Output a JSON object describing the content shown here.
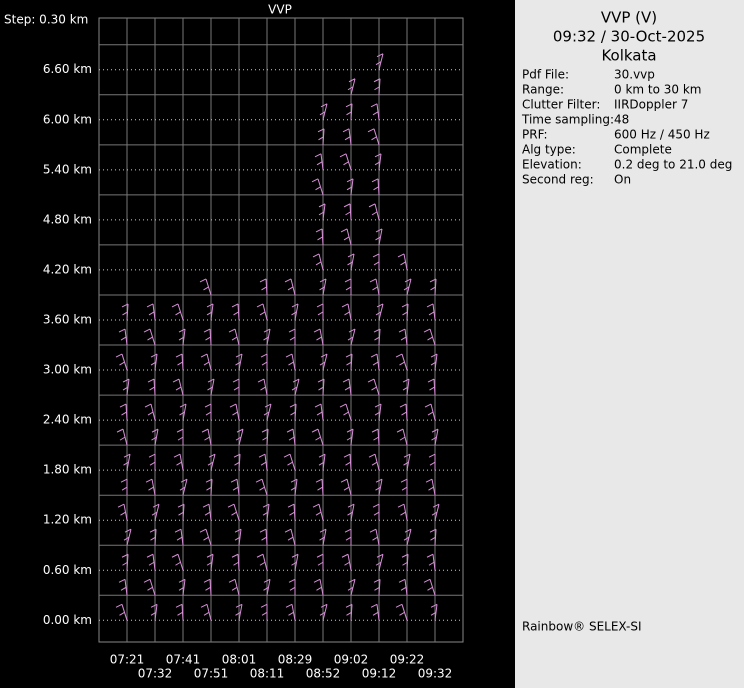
{
  "chart_data": {
    "type": "vvp",
    "title": "VVP",
    "step_label": "Step: 0.30 km",
    "categories": [
      "07:21",
      "07:32",
      "07:41",
      "07:51",
      "08:01",
      "08:11",
      "08:29",
      "08:52",
      "09:02",
      "09:12",
      "09:22",
      "09:32"
    ],
    "values": [
      3.6,
      3.6,
      3.6,
      3.9,
      3.6,
      3.9,
      3.9,
      6.0,
      6.3,
      6.6,
      4.2,
      3.9
    ],
    "step": 0.3,
    "color": "#d88ed8",
    "ylim": [
      -0.26,
      7.22
    ],
    "yticks": [
      {
        "value": 0,
        "label": "0.00 km"
      },
      {
        "value": 0.6,
        "label": "0.60 km"
      },
      {
        "value": 1.2,
        "label": "1.20 km"
      },
      {
        "value": 1.8,
        "label": "1.80 km"
      },
      {
        "value": 2.4,
        "label": "2.40 km"
      },
      {
        "value": 3.0,
        "label": "3.00 km"
      },
      {
        "value": 3.6,
        "label": "3.60 km"
      },
      {
        "value": 4.2,
        "label": "4.20 km"
      },
      {
        "value": 4.8,
        "label": "4.80 km"
      },
      {
        "value": 5.4,
        "label": "5.40 km"
      },
      {
        "value": 6.0,
        "label": "6.00 km"
      },
      {
        "value": 6.6,
        "label": "6.60 km"
      }
    ],
    "grid": true
  },
  "panel": {
    "title": "VVP (V)",
    "datetime": "09:32 / 30-Oct-2025",
    "site": "Kolkata",
    "rows": [
      [
        "Pdf File:",
        "30.vvp"
      ],
      [
        "Range:",
        "0 km to 30 km"
      ],
      [
        "Clutter Filter:",
        "IIRDoppler 7"
      ],
      [
        "Time sampling:",
        "48"
      ],
      [
        "PRF:",
        "600 Hz / 450 Hz"
      ],
      [
        "Alg type:",
        "Complete"
      ],
      [
        "Elevation:",
        "0.2 deg to 21.0 deg"
      ],
      [
        "Second reg:",
        "On"
      ]
    ],
    "footer": "Rainbow® SELEX-SI"
  }
}
